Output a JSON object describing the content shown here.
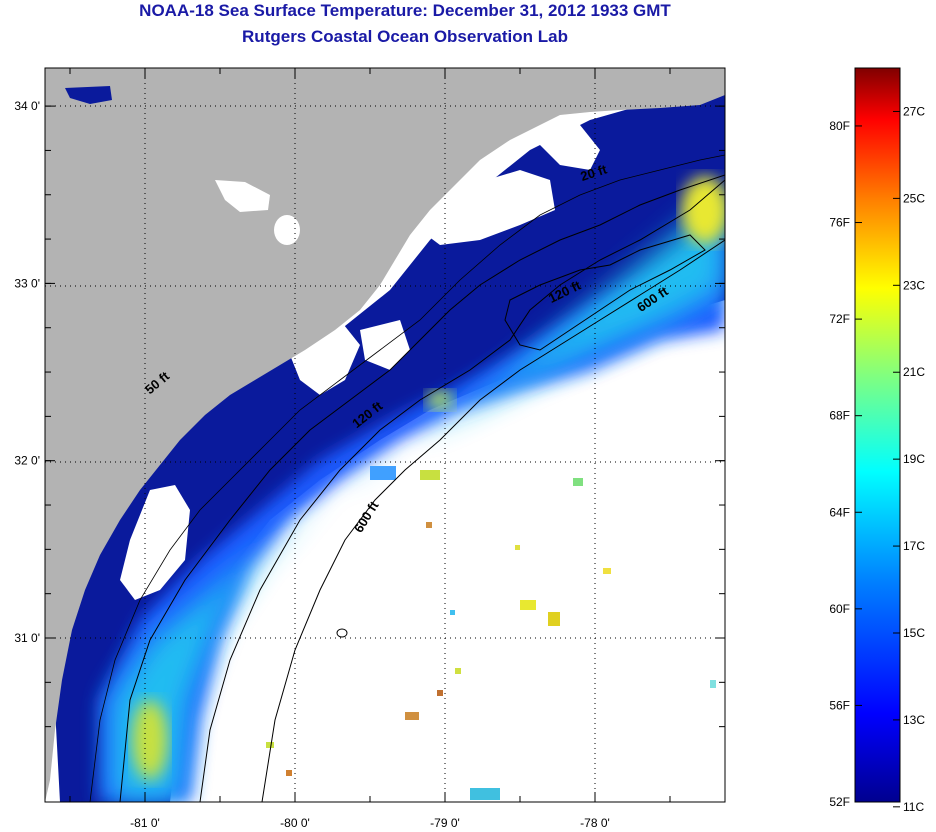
{
  "title": {
    "line1": "NOAA-18 Sea Surface Temperature:  December 31, 2012 1933 GMT",
    "line2": "Rutgers Coastal Ocean Observation Lab"
  },
  "map": {
    "lon_ticks": [
      {
        "value": -81,
        "label": "-81 0'"
      },
      {
        "value": -80,
        "label": "-80 0'"
      },
      {
        "value": -79,
        "label": "-79 0'"
      },
      {
        "value": -78,
        "label": "-78 0'"
      }
    ],
    "lat_ticks": [
      {
        "value": 34,
        "label": "34 0'"
      },
      {
        "value": 33,
        "label": "33 0'"
      },
      {
        "value": 32,
        "label": "32 0'"
      },
      {
        "value": 31,
        "label": "31 0'"
      }
    ],
    "contour_labels": [
      {
        "text": "50 ft",
        "lon": -80.9,
        "lat": 32.42,
        "angle": -40
      },
      {
        "text": "120 ft",
        "lon": -79.5,
        "lat": 32.24,
        "angle": -38
      },
      {
        "text": "600 ft",
        "lon": -79.5,
        "lat": 31.67,
        "angle": -58
      },
      {
        "text": "120 ft",
        "lon": -78.19,
        "lat": 32.93,
        "angle": -26
      },
      {
        "text": "600 ft",
        "lon": -77.6,
        "lat": 32.89,
        "angle": -34
      },
      {
        "text": "20 ft",
        "lon": -78.0,
        "lat": 33.6,
        "angle": -18
      }
    ],
    "colors": {
      "land": "#b3b3b3",
      "cloud": "#ffffff",
      "cold_water": "#0a1a9c",
      "mid_water": "#1a5aff",
      "shelf_water": "#22c8f0",
      "warm_patch": "#e8e830"
    }
  },
  "colorbar": {
    "fahrenheit_labels": [
      "80F",
      "76F",
      "72F",
      "68F",
      "64F",
      "60F",
      "56F",
      "52F"
    ],
    "celsius_labels": [
      "27C",
      "25C",
      "23C",
      "21C",
      "19C",
      "17C",
      "15C",
      "13C",
      "11C"
    ],
    "gradient": [
      "#00008f",
      "#0000ff",
      "#0080ff",
      "#00ffff",
      "#80ff80",
      "#ffff00",
      "#ff8000",
      "#ff0000",
      "#800000"
    ]
  }
}
